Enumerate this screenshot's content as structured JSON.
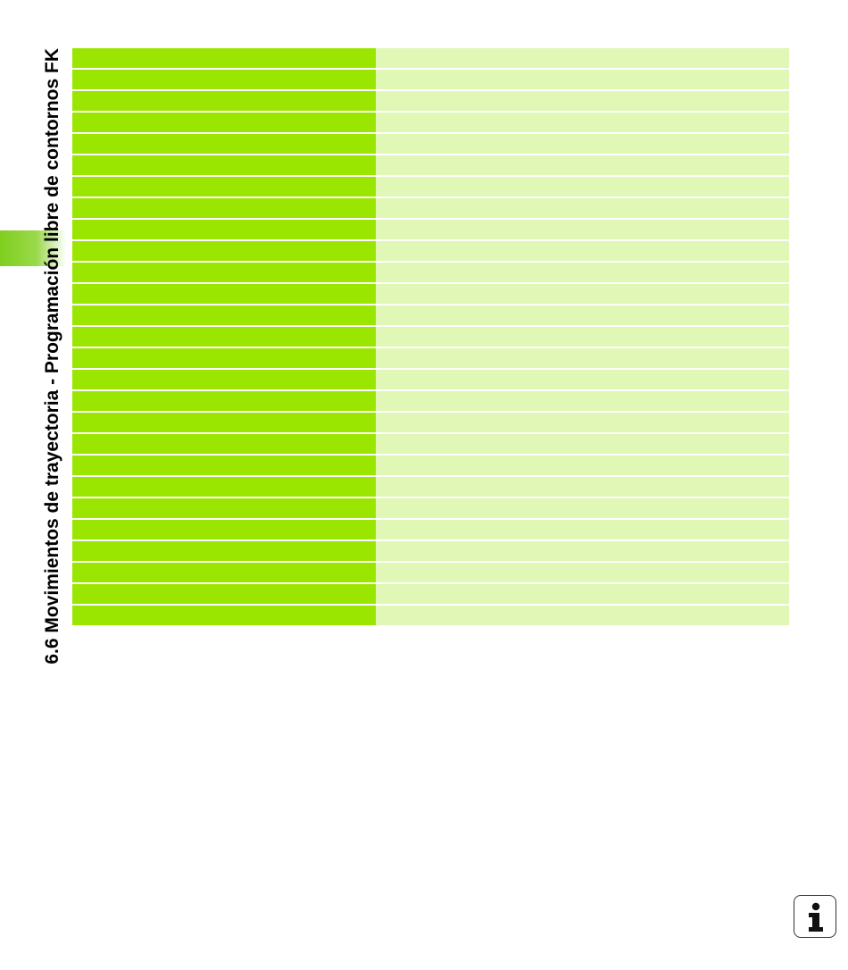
{
  "page": {
    "section_title": "6.6 Movimientos de trayectoria - Programación libre de contornos FK"
  },
  "table": {
    "row_count": 27,
    "colors": {
      "left_cell": "#9be600",
      "right_cell": "#e0f7b5"
    }
  },
  "icons": {
    "info": "info-icon"
  },
  "colors": {
    "accent_tab": "#7fcf1f"
  }
}
